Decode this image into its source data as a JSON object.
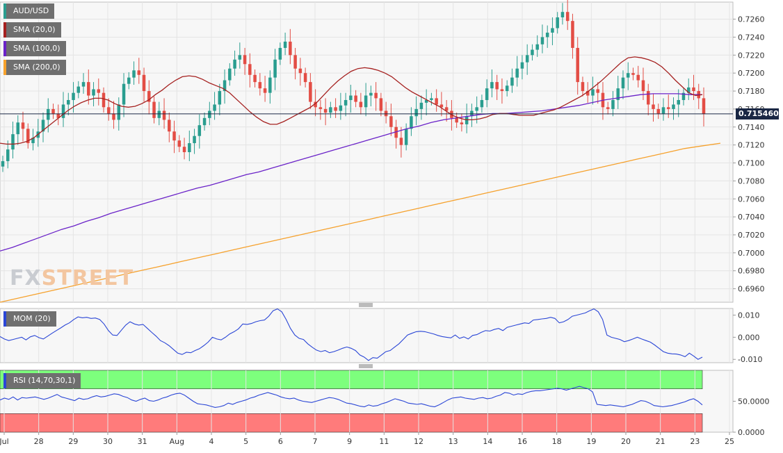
{
  "instrument": "AUD/USD",
  "colors": {
    "bull": "#2a9d8f",
    "bear": "#e34d45",
    "sma20": "#a5201f",
    "sma100": "#6a22c8",
    "sma200": "#f6a12c",
    "mom": "#2a46d6",
    "rsi": "#2a46d6",
    "rsi_upper": "#7dff7d",
    "rsi_lower": "#ff7b7b",
    "price_line": "#1a2744"
  },
  "legend": [
    {
      "text": "AUD/USD",
      "color": "#2a9d8f"
    },
    {
      "text": "SMA (20,0)",
      "color": "#a5201f"
    },
    {
      "text": "SMA (100,0)",
      "color": "#6a22c8"
    },
    {
      "text": "SMA (200,0)",
      "color": "#f6a12c"
    }
  ],
  "watermark": {
    "part1": "FX",
    "part2": "STREET"
  },
  "current_price": "0.715460",
  "mom_label": "MOM (20)",
  "rsi_label": "RSI (14,70,30,1)",
  "chart_data": [
    {
      "type": "candlestick",
      "title": "AUD/USD",
      "y_ticks": [
        "0.7260",
        "0.7240",
        "0.7220",
        "0.7200",
        "0.7180",
        "0.7160",
        "0.7140",
        "0.7120",
        "0.7100",
        "0.7080",
        "0.7060",
        "0.7040",
        "0.7020",
        "0.7000",
        "0.6980",
        "0.6960"
      ],
      "ylim": [
        0.6945,
        0.7279
      ],
      "x_ticks": [
        "Jul",
        "28",
        "29",
        "30",
        "31",
        "Aug",
        "4",
        "5",
        "6",
        "7",
        "9",
        "11",
        "12",
        "13",
        "14",
        "16",
        "18",
        "19",
        "20",
        "21",
        "23",
        "25"
      ],
      "current_price": 0.71546,
      "closes": [
        0.7102,
        0.7115,
        0.7132,
        0.7145,
        0.7138,
        0.7122,
        0.7128,
        0.7135,
        0.7148,
        0.716,
        0.7155,
        0.715,
        0.7165,
        0.717,
        0.7178,
        0.7185,
        0.719,
        0.7175,
        0.7182,
        0.7178,
        0.7162,
        0.7155,
        0.7148,
        0.7165,
        0.7188,
        0.7195,
        0.7203,
        0.7198,
        0.718,
        0.7168,
        0.715,
        0.7158,
        0.7148,
        0.7135,
        0.7125,
        0.7118,
        0.7112,
        0.7122,
        0.713,
        0.7142,
        0.715,
        0.7158,
        0.7165,
        0.718,
        0.7192,
        0.7205,
        0.7215,
        0.722,
        0.721,
        0.7198,
        0.719,
        0.7183,
        0.7178,
        0.7195,
        0.7215,
        0.7228,
        0.7235,
        0.722,
        0.7205,
        0.72,
        0.719,
        0.7168,
        0.7162,
        0.716,
        0.7156,
        0.7162,
        0.7158,
        0.7164,
        0.717,
        0.7175,
        0.7168,
        0.7162,
        0.7175,
        0.7178,
        0.7172,
        0.7158,
        0.7152,
        0.714,
        0.7128,
        0.712,
        0.7138,
        0.7152,
        0.716,
        0.7167,
        0.717,
        0.7172,
        0.7165,
        0.7162,
        0.7158,
        0.715,
        0.7145,
        0.7143,
        0.7152,
        0.7158,
        0.7162,
        0.717,
        0.7183,
        0.719,
        0.7182,
        0.718,
        0.7186,
        0.7195,
        0.7205,
        0.7212,
        0.722,
        0.7226,
        0.7232,
        0.724,
        0.7245,
        0.725,
        0.7262,
        0.7268,
        0.7258,
        0.7228,
        0.719,
        0.718,
        0.7175,
        0.7182,
        0.7178,
        0.7162,
        0.716,
        0.717,
        0.7183,
        0.7195,
        0.72,
        0.7198,
        0.7192,
        0.718,
        0.7165,
        0.716,
        0.7155,
        0.7162,
        0.716,
        0.7165,
        0.717,
        0.7178,
        0.7184,
        0.718,
        0.7172,
        0.71546
      ],
      "sma20": [
        0.7122,
        0.7121,
        0.7121,
        0.7122,
        0.7124,
        0.7128,
        0.7134,
        0.714,
        0.7146,
        0.7152,
        0.7158,
        0.7163,
        0.7167,
        0.717,
        0.7172,
        0.7172,
        0.717,
        0.7166,
        0.7163,
        0.7162,
        0.7163,
        0.7166,
        0.717,
        0.7176,
        0.7181,
        0.7187,
        0.7192,
        0.7196,
        0.7197,
        0.7196,
        0.7193,
        0.7189,
        0.7186,
        0.7183,
        0.7178,
        0.7171,
        0.7164,
        0.7157,
        0.7151,
        0.7146,
        0.7143,
        0.7143,
        0.7146,
        0.715,
        0.7154,
        0.7158,
        0.7162,
        0.7168,
        0.7176,
        0.7184,
        0.7191,
        0.7197,
        0.7202,
        0.7205,
        0.7206,
        0.7205,
        0.7203,
        0.72,
        0.7196,
        0.719,
        0.7184,
        0.7179,
        0.7175,
        0.7171,
        0.7167,
        0.7163,
        0.7158,
        0.7153,
        0.715,
        0.7148,
        0.7148,
        0.7149,
        0.7151,
        0.7154,
        0.7155,
        0.7155,
        0.7154,
        0.7153,
        0.7153,
        0.7153,
        0.7155,
        0.7157,
        0.7159,
        0.7162,
        0.7166,
        0.717,
        0.7174,
        0.7179,
        0.7185,
        0.7191,
        0.7198,
        0.7205,
        0.7212,
        0.7217,
        0.7218,
        0.7217,
        0.7215,
        0.7212,
        0.7207,
        0.72,
        0.7192,
        0.7185,
        0.7178,
        0.7175,
        0.7176
      ],
      "sma100": [
        0.7002,
        0.7006,
        0.7011,
        0.7016,
        0.7021,
        0.7026,
        0.703,
        0.7035,
        0.7039,
        0.7044,
        0.7048,
        0.7052,
        0.7056,
        0.706,
        0.7064,
        0.7068,
        0.7072,
        0.7075,
        0.7079,
        0.7083,
        0.7087,
        0.709,
        0.7094,
        0.7098,
        0.7102,
        0.7106,
        0.711,
        0.7114,
        0.7118,
        0.7122,
        0.7126,
        0.713,
        0.7134,
        0.7138,
        0.7141,
        0.7145,
        0.7148,
        0.715,
        0.7152,
        0.7154,
        0.7155,
        0.7155,
        0.7156,
        0.7157,
        0.7158,
        0.716,
        0.7162,
        0.7164,
        0.7167,
        0.717,
        0.7172,
        0.7174,
        0.7176,
        0.7177,
        0.7177,
        0.7177,
        0.7176,
        0.7176
      ],
      "sma200": [
        0.6945,
        0.6948,
        0.6951,
        0.6954,
        0.6957,
        0.696,
        0.6963,
        0.6966,
        0.6969,
        0.6972,
        0.6975,
        0.6978,
        0.6981,
        0.6984,
        0.6987,
        0.699,
        0.6993,
        0.6996,
        0.6999,
        0.7002,
        0.7005,
        0.7008,
        0.7011,
        0.7014,
        0.7017,
        0.702,
        0.7023,
        0.7026,
        0.7029,
        0.7032,
        0.7035,
        0.7038,
        0.7041,
        0.7044,
        0.7047,
        0.705,
        0.7053,
        0.7056,
        0.7059,
        0.7062,
        0.7065,
        0.7068,
        0.7071,
        0.7074,
        0.7077,
        0.708,
        0.7083,
        0.7086,
        0.7089,
        0.7092,
        0.7095,
        0.7098,
        0.7101,
        0.7104,
        0.7107,
        0.711,
        0.7113,
        0.7116,
        0.7118,
        0.712,
        0.7122
      ]
    },
    {
      "type": "line",
      "title": "MOM (20)",
      "y_ticks": [
        "0.010",
        "0.000",
        "-0.010"
      ],
      "ylim": [
        -0.0115,
        0.013
      ],
      "values": [
        0.0003,
        -0.0008,
        -0.0015,
        -0.001,
        -0.0005,
        0.0,
        -0.0012,
        0.0002,
        0.0008,
        -0.0002,
        -0.0008,
        0.0005,
        0.0018,
        0.003,
        0.0042,
        0.0055,
        0.0065,
        0.008,
        0.0092,
        0.0088,
        0.009,
        0.0085,
        0.0087,
        0.008,
        0.006,
        0.003,
        0.001,
        0.0008,
        0.0032,
        0.0055,
        0.007,
        0.006,
        0.0055,
        0.0058,
        0.004,
        0.0022,
        0.0005,
        -0.0015,
        -0.0025,
        -0.0038,
        -0.0055,
        -0.0072,
        -0.0078,
        -0.0068,
        -0.007,
        -0.006,
        -0.0052,
        -0.0038,
        -0.0022,
        0.0,
        -0.0008,
        -0.0012,
        0.0,
        0.0015,
        0.0025,
        0.0038,
        0.006,
        0.0058,
        0.0062,
        0.007,
        0.0075,
        0.0078,
        0.0095,
        0.012,
        0.0128,
        0.0115,
        0.008,
        0.004,
        0.001,
        -0.0005,
        -0.001,
        -0.003,
        -0.0045,
        -0.0058,
        -0.0065,
        -0.006,
        -0.007,
        -0.0065,
        -0.0058,
        -0.005,
        -0.0044,
        -0.005,
        -0.006,
        -0.008,
        -0.009,
        -0.0105,
        -0.0092,
        -0.0095,
        -0.008,
        -0.0065,
        -0.006,
        -0.0045,
        -0.003,
        -0.001,
        0.001,
        0.0018,
        0.0025,
        0.0027,
        0.0025,
        0.002,
        0.0015,
        0.0008,
        0.0003,
        0.0,
        -0.0003,
        0.001,
        -0.0005,
        0.0002,
        -0.0008,
        0.0008,
        0.0012,
        0.0022,
        0.003,
        0.0028,
        0.0035,
        0.004,
        0.003,
        0.0045,
        0.005,
        0.0055,
        0.006,
        0.0065,
        0.0062,
        0.0078,
        0.008,
        0.0083,
        0.0085,
        0.009,
        0.0085,
        0.0065,
        0.007,
        0.008,
        0.0095,
        0.01,
        0.0105,
        0.011,
        0.012,
        0.0128,
        0.0115,
        0.008,
        0.001,
        0.0,
        -0.0005,
        -0.001,
        -0.002,
        -0.0015,
        -0.0008,
        0.0,
        -0.0008,
        -0.0015,
        -0.0022,
        -0.0035,
        -0.005,
        -0.0065,
        -0.0072,
        -0.0075,
        -0.0076,
        -0.008,
        -0.0088,
        -0.0072,
        -0.0085,
        -0.01,
        -0.009
      ]
    },
    {
      "type": "line",
      "title": "RSI (14,70,30,1)",
      "y_ticks": [
        "50.0000",
        "0.0000"
      ],
      "ylim": [
        0,
        100
      ],
      "bands": [
        {
          "from": 70,
          "to": 100,
          "color": "#7dff7d"
        },
        {
          "from": 0,
          "to": 30,
          "color": "#ff7b7b"
        }
      ],
      "values": [
        52,
        55,
        53,
        57,
        52,
        56,
        55,
        56,
        57,
        55,
        53,
        55,
        58,
        61,
        57,
        55,
        53,
        51,
        55,
        53,
        54,
        57,
        59,
        57,
        58,
        60,
        62,
        61,
        58,
        56,
        52,
        50,
        53,
        55,
        51,
        50,
        52,
        55,
        57,
        60,
        62,
        63,
        60,
        55,
        50,
        46,
        45,
        44,
        42,
        40,
        41,
        43,
        47,
        45,
        48,
        50,
        52,
        55,
        57,
        60,
        62,
        64,
        62,
        60,
        57,
        55,
        54,
        55,
        52,
        50,
        49,
        48,
        50,
        52,
        54,
        56,
        55,
        53,
        50,
        47,
        46,
        44,
        42,
        41,
        44,
        42,
        43,
        46,
        48,
        51,
        54,
        52,
        50,
        47,
        46,
        45,
        46,
        44,
        42,
        41,
        44,
        48,
        52,
        55,
        56,
        57,
        55,
        54,
        53,
        55,
        56,
        54,
        55,
        58,
        60,
        64,
        63,
        60,
        62,
        61,
        64,
        66,
        67,
        67,
        68,
        69,
        70,
        71,
        70,
        68,
        70,
        72,
        74,
        72,
        70,
        65,
        45,
        44,
        43,
        44,
        43,
        42,
        41,
        43,
        45,
        48,
        51,
        50,
        47,
        43,
        42,
        41,
        42,
        43,
        45,
        47,
        49,
        52,
        54,
        50,
        44
      ]
    }
  ],
  "x_axis_labels": [
    "Jul",
    "28",
    "29",
    "30",
    "31",
    "Aug",
    "4",
    "5",
    "6",
    "7",
    "9",
    "11",
    "12",
    "13",
    "14",
    "16",
    "18",
    "19",
    "20",
    "21",
    "23",
    "25"
  ]
}
